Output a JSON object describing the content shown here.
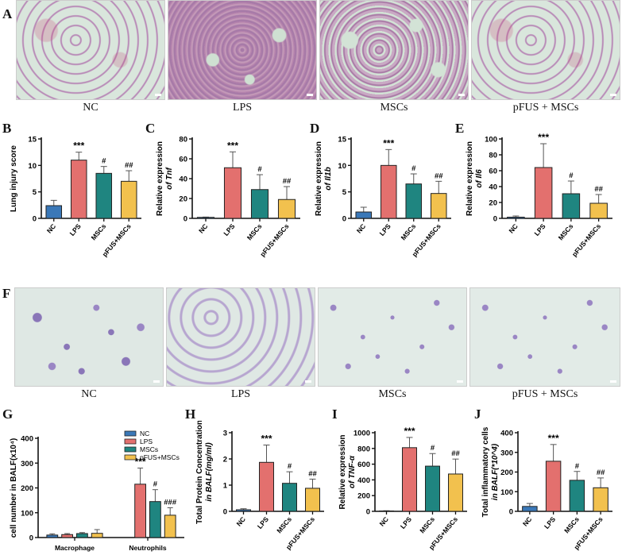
{
  "panels": {
    "A": {
      "letter": "A",
      "images": [
        {
          "label": "NC"
        },
        {
          "label": "LPS"
        },
        {
          "label": "MSCs"
        },
        {
          "label": "pFUS + MSCs"
        }
      ]
    },
    "F": {
      "letter": "F",
      "images": [
        {
          "label": "NC"
        },
        {
          "label": "LPS"
        },
        {
          "label": "MSCs"
        },
        {
          "label": "pFUS + MSCs"
        }
      ]
    }
  },
  "colors": {
    "NC": "#3a78b8",
    "LPS": "#e3706e",
    "MSCs": "#1f8580",
    "pFUS+MSCs": "#f2c14e"
  },
  "chart_data": [
    {
      "panel": "B",
      "type": "bar",
      "title": "",
      "ylabel": "Lung injury score",
      "ylabel2": "",
      "categories": [
        "NC",
        "LPS",
        "MSCs",
        "pFUS+MSCs"
      ],
      "values": [
        2.4,
        11.0,
        8.5,
        7.0
      ],
      "errors": [
        1.0,
        1.5,
        1.3,
        2.0
      ],
      "annotations": [
        "",
        "***",
        "#",
        "##"
      ],
      "ylim": [
        0,
        15
      ],
      "yticks": [
        0,
        5,
        10,
        15
      ]
    },
    {
      "panel": "C",
      "type": "bar",
      "ylabel": "Relative expression",
      "ylabel2": "of Tnf",
      "categories": [
        "NC",
        "LPS",
        "MSCs",
        "pFUS+MSCs"
      ],
      "values": [
        1.0,
        51,
        29,
        19
      ],
      "errors": [
        0.3,
        16,
        15,
        13
      ],
      "annotations": [
        "",
        "***",
        "#",
        "##"
      ],
      "ylim": [
        0,
        80
      ],
      "yticks": [
        0,
        20,
        40,
        60,
        80
      ]
    },
    {
      "panel": "D",
      "type": "bar",
      "ylabel": "Relative expression",
      "ylabel2": "of Il1b",
      "categories": [
        "NC",
        "LPS",
        "MSCs",
        "pFUS+MSCs"
      ],
      "values": [
        1.2,
        10.0,
        6.5,
        4.7
      ],
      "errors": [
        0.9,
        3.0,
        1.9,
        2.3
      ],
      "annotations": [
        "",
        "***",
        "#",
        "##"
      ],
      "ylim": [
        0,
        15
      ],
      "yticks": [
        0,
        5,
        10,
        15
      ]
    },
    {
      "panel": "E",
      "type": "bar",
      "ylabel": "Relative expression",
      "ylabel2": "of Il6",
      "categories": [
        "NC",
        "LPS",
        "MSCs",
        "pFUS+MSCs"
      ],
      "values": [
        1.5,
        64,
        31,
        19
      ],
      "errors": [
        1.5,
        30,
        16,
        11
      ],
      "annotations": [
        "",
        "***",
        "#",
        "##"
      ],
      "ylim": [
        0,
        100
      ],
      "yticks": [
        0,
        20,
        40,
        60,
        80,
        100
      ]
    },
    {
      "panel": "G",
      "type": "bar",
      "ylabel": "cell number in BALF(x10⁴)",
      "categories": [
        "Macrophage",
        "Neutrophils"
      ],
      "series": [
        {
          "name": "NC",
          "values": [
            10,
            0
          ],
          "errors": [
            5,
            0
          ]
        },
        {
          "name": "LPS",
          "values": [
            12,
            215
          ],
          "errors": [
            4,
            65
          ]
        },
        {
          "name": "MSCs",
          "values": [
            16,
            145
          ],
          "errors": [
            4,
            48
          ]
        },
        {
          "name": "pFUS+MSCs",
          "values": [
            17,
            90
          ],
          "errors": [
            15,
            30
          ]
        }
      ],
      "annotations": {
        "Neutrophils": [
          "",
          "***",
          "#",
          "###"
        ]
      },
      "legend": [
        "NC",
        "LPS",
        "MSCs",
        "pFUS+MSCs"
      ],
      "legend_position": "upper right",
      "ylim": [
        0,
        400
      ],
      "yticks": [
        0,
        100,
        200,
        300,
        400
      ]
    },
    {
      "panel": "H",
      "type": "bar",
      "ylabel": "Total Protein Concentration",
      "ylabel2": "in BALF(mg/ml)",
      "categories": [
        "NC",
        "LPS",
        "MSCs",
        "pFUS+MSCs"
      ],
      "values": [
        0.06,
        1.87,
        1.07,
        0.88
      ],
      "errors": [
        0.04,
        0.66,
        0.44,
        0.35
      ],
      "annotations": [
        "",
        "***",
        "#",
        "##"
      ],
      "ylim": [
        0,
        3
      ],
      "yticks": [
        0,
        1,
        2,
        3
      ]
    },
    {
      "panel": "I",
      "type": "bar",
      "ylabel": "Relative expression",
      "ylabel2": "of TNF-α",
      "categories": [
        "NC",
        "LPS",
        "MSCs",
        "pFUS+MSCs"
      ],
      "values": [
        5,
        810,
        575,
        475
      ],
      "errors": [
        3,
        130,
        160,
        190
      ],
      "annotations": [
        "",
        "***",
        "#",
        "##"
      ],
      "ylim": [
        0,
        1000
      ],
      "yticks": [
        0,
        200,
        400,
        600,
        800,
        1000
      ]
    },
    {
      "panel": "J",
      "type": "bar",
      "ylabel": "Total inflammatory cells",
      "ylabel2": "in BALF(*10^4)",
      "categories": [
        "NC",
        "LPS",
        "MSCs",
        "pFUS+MSCs"
      ],
      "values": [
        25,
        255,
        158,
        120
      ],
      "errors": [
        15,
        85,
        45,
        50
      ],
      "annotations": [
        "",
        "***",
        "#",
        "##"
      ],
      "ylim": [
        0,
        400
      ],
      "yticks": [
        0,
        100,
        200,
        300,
        400
      ]
    }
  ]
}
